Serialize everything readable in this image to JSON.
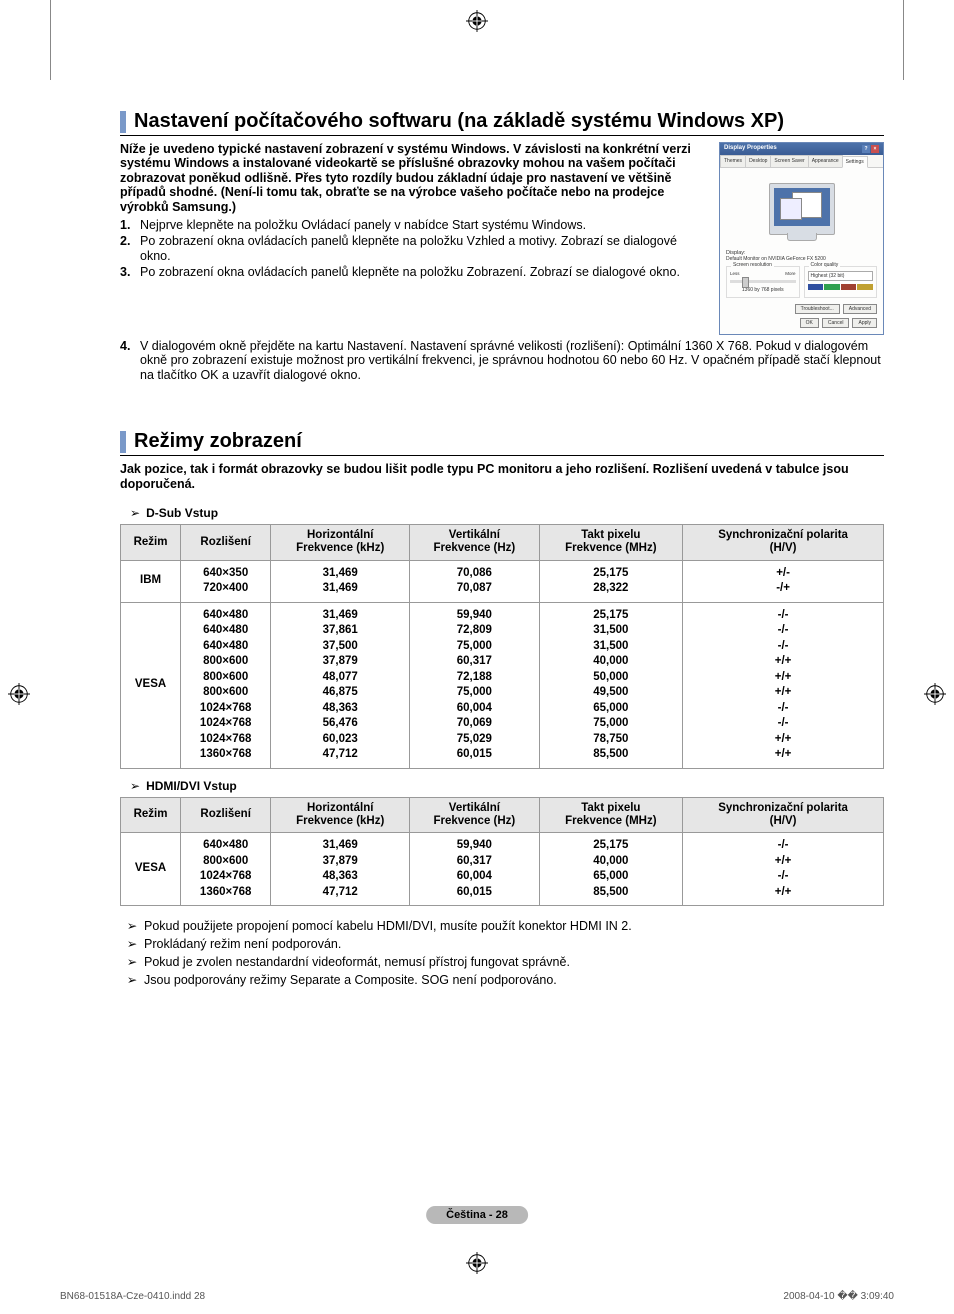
{
  "section1": {
    "heading": "Nastavení počítačového softwaru (na základě systému Windows XP)",
    "intro": "Níže je uvedeno typické nastavení zobrazení v systému Windows. V závislosti na konkrétní verzi systému Windows a instalované videokartě se příslušné obrazovky mohou na vašem počítači zobrazovat poněkud odlišně. Přes tyto rozdíly budou základní údaje pro nastavení ve většině případů shodné. (Není-li tomu tak, obraťte se na výrobce vašeho počítače nebo na prodejce výrobků Samsung.)",
    "steps": [
      "Nejprve klepněte na položku Ovládací panely v nabídce Start systému Windows.",
      "Po zobrazení okna ovládacích panelů klepněte na položku Vzhled a motivy. Zobrazí se dialogové okno.",
      "Po zobrazení okna ovládacích panelů klepněte na položku Zobrazení. Zobrazí se dialogové okno.",
      "V dialogovém okně přejděte na kartu Nastavení. Nastavení správné velikosti (rozlišení): Optimální 1360 X 768. Pokud v dialogovém okně pro zobrazení existuje možnost pro vertikální frekvenci, je správnou hodnotou 60 nebo 60 Hz. V opačném případě stačí klepnout na tlačítko OK a uzavřít dialogové okno."
    ]
  },
  "dialog": {
    "title": "Display Properties",
    "tabs": [
      "Themes",
      "Desktop",
      "Screen Saver",
      "Appearance",
      "Settings"
    ],
    "display_label": "Display:",
    "display_value": "Default Monitor on NVIDIA GeForce FX 5200",
    "res_label": "Screen resolution",
    "res_less": "Less",
    "res_more": "More",
    "res_value": "1360 by 768 pixels",
    "cq_label": "Color quality",
    "cq_value": "Highest (32 bit)",
    "cq_colors": [
      "#3050a0",
      "#30a050",
      "#a04030",
      "#c0a030"
    ],
    "btn_troubleshoot": "Troubleshoot...",
    "btn_advanced": "Advanced",
    "btn_ok": "OK",
    "btn_cancel": "Cancel",
    "btn_apply": "Apply"
  },
  "section2": {
    "heading": "Režimy zobrazení",
    "sub": "Jak pozice, tak i formát obrazovky se budou lišit podle typu PC monitoru a jeho rozlišení. Rozlišení uvedená v tabulce jsou doporučená.",
    "table1_label": "D-Sub Vstup",
    "table2_label": "HDMI/DVI Vstup",
    "headers": {
      "mode": "Režim",
      "resolution": "Rozlišení",
      "hfreq": "Horizontální Frekvence (kHz)",
      "vfreq": "Vertikální Frekvence (Hz)",
      "pclk": "Takt pixelu Frekvence (MHz)",
      "pol": "Synchronizační polarita (H/V)"
    },
    "table1": [
      {
        "mode": "IBM",
        "res": [
          "640×350",
          "720×400"
        ],
        "h": [
          "31,469",
          "31,469"
        ],
        "v": [
          "70,086",
          "70,087"
        ],
        "p": [
          "25,175",
          "28,322"
        ],
        "pol": [
          "+/-",
          "-/+"
        ]
      },
      {
        "mode": "VESA",
        "res": [
          "640×480",
          "640×480",
          "640×480",
          "800×600",
          "800×600",
          "800×600",
          "1024×768",
          "1024×768",
          "1024×768",
          "1360×768"
        ],
        "h": [
          "31,469",
          "37,861",
          "37,500",
          "37,879",
          "48,077",
          "46,875",
          "48,363",
          "56,476",
          "60,023",
          "47,712"
        ],
        "v": [
          "59,940",
          "72,809",
          "75,000",
          "60,317",
          "72,188",
          "75,000",
          "60,004",
          "70,069",
          "75,029",
          "60,015"
        ],
        "p": [
          "25,175",
          "31,500",
          "31,500",
          "40,000",
          "50,000",
          "49,500",
          "65,000",
          "75,000",
          "78,750",
          "85,500"
        ],
        "pol": [
          "-/-",
          "-/-",
          "-/-",
          "+/+",
          "+/+",
          "+/+",
          "-/-",
          "-/-",
          "+/+",
          "+/+"
        ]
      }
    ],
    "table2": [
      {
        "mode": "VESA",
        "res": [
          "640×480",
          "800×600",
          "1024×768",
          "1360×768"
        ],
        "h": [
          "31,469",
          "37,879",
          "48,363",
          "47,712"
        ],
        "v": [
          "59,940",
          "60,317",
          "60,004",
          "60,015"
        ],
        "p": [
          "25,175",
          "40,000",
          "65,000",
          "85,500"
        ],
        "pol": [
          "-/-",
          "+/+",
          "-/-",
          "+/+"
        ]
      }
    ],
    "notes": [
      "Pokud použijete propojení pomocí kabelu HDMI/DVI, musíte použít konektor HDMI IN 2.",
      "Prokládaný režim není podporován.",
      "Pokud je zvolen nestandardní videoformát, nemusí přístroj fungovat správně.",
      "Jsou podporovány režimy Separate a Composite. SOG není podporováno."
    ]
  },
  "page_badge": "Čeština - 28",
  "footer": {
    "left": "BN68-01518A-Cze-0410.indd   28",
    "right": "2008-04-10   �� 3:09:40"
  }
}
